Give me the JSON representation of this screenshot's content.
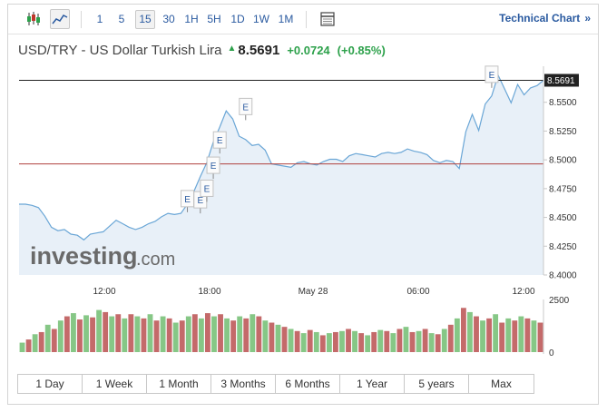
{
  "toolbar": {
    "intervals": [
      "1",
      "5",
      "15",
      "30",
      "1H",
      "5H",
      "1D",
      "1W",
      "1M"
    ],
    "active_interval": "15",
    "technical_link": "Technical Chart",
    "technical_chevron": "»"
  },
  "header": {
    "name": "USD/TRY - US Dollar Turkish Lira",
    "price": "8.5691",
    "change": "+0.0724",
    "change_pct": "(+0.85%)"
  },
  "ranges": [
    "1 Day",
    "1 Week",
    "1 Month",
    "3 Months",
    "6 Months",
    "1 Year",
    "5 years",
    "Max"
  ],
  "colors": {
    "line": "#6aa6d6",
    "area": "#e8f0f8",
    "up": "#86c786",
    "down": "#c46a6a",
    "prev_close": "#b0413e",
    "current": "#222222",
    "accent": "#2a5aa0"
  },
  "chart_data": {
    "type": "area",
    "symbol": "USD/TRY",
    "x_ticks": [
      "12:00",
      "18:00",
      "May 28",
      "06:00",
      "12:00"
    ],
    "y_ticks": [
      "8.5500",
      "8.5250",
      "8.5000",
      "8.4750",
      "8.4500",
      "8.4250",
      "8.4000"
    ],
    "ylim": [
      8.4,
      8.575
    ],
    "current_value": 8.5691,
    "current_label": "8.5691",
    "reference_line": 8.4965,
    "grid": false,
    "event_marker_label": "E",
    "volume_axis_ticks": [
      "2500",
      "0"
    ],
    "watermark": "investing.com",
    "series": [
      {
        "values": [
          8.4615,
          8.4615,
          8.4605,
          8.4585,
          8.451,
          8.4415,
          8.4385,
          8.4395,
          8.4355,
          8.4345,
          8.4305,
          8.4355,
          8.4365,
          8.4375,
          8.4425,
          8.4475,
          8.4445,
          8.4415,
          8.4395,
          8.4415,
          8.4445,
          8.4465,
          8.4505,
          8.4535,
          8.4525,
          8.4535,
          8.4615,
          8.4725,
          8.4855,
          8.4975,
          8.5155,
          8.5285,
          8.5425,
          8.5355,
          8.5205,
          8.5175,
          8.5125,
          8.5135,
          8.5085,
          8.4965,
          8.4955,
          8.4945,
          8.4935,
          8.4975,
          8.4985,
          8.4965,
          8.4955,
          8.4985,
          8.5005,
          8.5005,
          8.4985,
          8.5035,
          8.5055,
          8.5045,
          8.5035,
          8.5025,
          8.5055,
          8.5065,
          8.5055,
          8.5065,
          8.5095,
          8.5075,
          8.5065,
          8.5045,
          8.4995,
          8.4975,
          8.4995,
          8.4985,
          8.4925,
          8.5245,
          8.5395,
          8.5255,
          8.5485,
          8.5555,
          8.5735,
          8.5615,
          8.5495,
          8.5655,
          8.5565,
          8.5625,
          8.5645,
          8.5691
        ]
      }
    ],
    "events": [
      {
        "x": 26,
        "y": 8.4545,
        "label": "E"
      },
      {
        "x": 28,
        "y": 8.4535,
        "label": "E"
      },
      {
        "x": 29,
        "y": 8.4635,
        "label": "E"
      },
      {
        "x": 30,
        "y": 8.4835,
        "label": "E"
      },
      {
        "x": 31,
        "y": 8.5055,
        "label": "E"
      },
      {
        "x": 35,
        "y": 8.5345,
        "label": "E"
      },
      {
        "x": 73,
        "y": 8.5625,
        "label": "E"
      }
    ],
    "volume": [
      {
        "v": 450,
        "up": true
      },
      {
        "v": 600,
        "up": false
      },
      {
        "v": 850,
        "up": true
      },
      {
        "v": 950,
        "up": false
      },
      {
        "v": 1300,
        "up": true
      },
      {
        "v": 1100,
        "up": false
      },
      {
        "v": 1500,
        "up": true
      },
      {
        "v": 1700,
        "up": false
      },
      {
        "v": 1850,
        "up": true
      },
      {
        "v": 1550,
        "up": false
      },
      {
        "v": 1750,
        "up": true
      },
      {
        "v": 1650,
        "up": false
      },
      {
        "v": 2000,
        "up": true
      },
      {
        "v": 1900,
        "up": false
      },
      {
        "v": 1700,
        "up": true
      },
      {
        "v": 1800,
        "up": false
      },
      {
        "v": 1600,
        "up": true
      },
      {
        "v": 1800,
        "up": false
      },
      {
        "v": 1700,
        "up": true
      },
      {
        "v": 1600,
        "up": false
      },
      {
        "v": 1800,
        "up": true
      },
      {
        "v": 1500,
        "up": false
      },
      {
        "v": 1700,
        "up": true
      },
      {
        "v": 1600,
        "up": false
      },
      {
        "v": 1400,
        "up": true
      },
      {
        "v": 1500,
        "up": false
      },
      {
        "v": 1700,
        "up": true
      },
      {
        "v": 1800,
        "up": false
      },
      {
        "v": 1600,
        "up": true
      },
      {
        "v": 1850,
        "up": false
      },
      {
        "v": 1700,
        "up": true
      },
      {
        "v": 1800,
        "up": false
      },
      {
        "v": 1600,
        "up": true
      },
      {
        "v": 1500,
        "up": false
      },
      {
        "v": 1700,
        "up": true
      },
      {
        "v": 1600,
        "up": false
      },
      {
        "v": 1800,
        "up": true
      },
      {
        "v": 1700,
        "up": false
      },
      {
        "v": 1500,
        "up": true
      },
      {
        "v": 1400,
        "up": false
      },
      {
        "v": 1300,
        "up": true
      },
      {
        "v": 1200,
        "up": false
      },
      {
        "v": 1100,
        "up": true
      },
      {
        "v": 1000,
        "up": false
      },
      {
        "v": 900,
        "up": true
      },
      {
        "v": 1050,
        "up": false
      },
      {
        "v": 950,
        "up": true
      },
      {
        "v": 800,
        "up": false
      },
      {
        "v": 900,
        "up": true
      },
      {
        "v": 950,
        "up": false
      },
      {
        "v": 1000,
        "up": true
      },
      {
        "v": 1100,
        "up": false
      },
      {
        "v": 1000,
        "up": true
      },
      {
        "v": 900,
        "up": false
      },
      {
        "v": 800,
        "up": true
      },
      {
        "v": 950,
        "up": false
      },
      {
        "v": 1050,
        "up": true
      },
      {
        "v": 1000,
        "up": false
      },
      {
        "v": 900,
        "up": true
      },
      {
        "v": 1100,
        "up": false
      },
      {
        "v": 1200,
        "up": true
      },
      {
        "v": 950,
        "up": false
      },
      {
        "v": 1000,
        "up": true
      },
      {
        "v": 1100,
        "up": false
      },
      {
        "v": 900,
        "up": true
      },
      {
        "v": 850,
        "up": false
      },
      {
        "v": 1100,
        "up": true
      },
      {
        "v": 1300,
        "up": false
      },
      {
        "v": 1600,
        "up": true
      },
      {
        "v": 2100,
        "up": false
      },
      {
        "v": 1900,
        "up": true
      },
      {
        "v": 1700,
        "up": false
      },
      {
        "v": 1500,
        "up": true
      },
      {
        "v": 1600,
        "up": false
      },
      {
        "v": 1800,
        "up": true
      },
      {
        "v": 1400,
        "up": false
      },
      {
        "v": 1600,
        "up": true
      },
      {
        "v": 1500,
        "up": false
      },
      {
        "v": 1700,
        "up": true
      },
      {
        "v": 1600,
        "up": false
      },
      {
        "v": 1500,
        "up": true
      },
      {
        "v": 1400,
        "up": false
      }
    ],
    "volume_max": 2500
  }
}
